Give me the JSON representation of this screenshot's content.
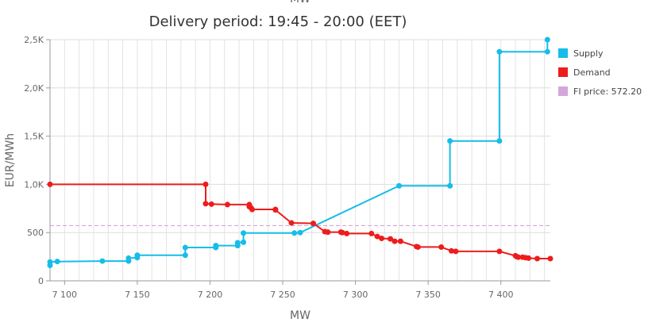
{
  "chart_data": {
    "type": "line",
    "title": "Delivery period: 19:45 - 20:00 (EET)",
    "top_label": "MW",
    "xlabel": "MW",
    "ylabel": "EUR/MWh",
    "xlim": [
      7090,
      7434
    ],
    "ylim": [
      0,
      2500
    ],
    "x_ticks": [
      {
        "value": 7100,
        "label": "7 100"
      },
      {
        "value": 7150,
        "label": "7 150"
      },
      {
        "value": 7200,
        "label": "7 200"
      },
      {
        "value": 7250,
        "label": "7 250"
      },
      {
        "value": 7300,
        "label": "7 300"
      },
      {
        "value": 7350,
        "label": "7 350"
      },
      {
        "value": 7400,
        "label": "7 400"
      }
    ],
    "y_ticks": [
      {
        "value": 0,
        "label": "0"
      },
      {
        "value": 500,
        "label": "500"
      },
      {
        "value": 1000,
        "label": "1,0K"
      },
      {
        "value": 1500,
        "label": "1,5K"
      },
      {
        "value": 2000,
        "label": "2,0K"
      },
      {
        "value": 2500,
        "label": "2,5K"
      }
    ],
    "grid": true,
    "legend_position": "right",
    "series": [
      {
        "name": "Supply",
        "color": "#16bde8",
        "points": [
          [
            7090,
            160
          ],
          [
            7090,
            195
          ],
          [
            7095,
            200
          ],
          [
            7126,
            205
          ],
          [
            7144,
            205
          ],
          [
            7144,
            235
          ],
          [
            7150,
            240
          ],
          [
            7150,
            265
          ],
          [
            7183,
            265
          ],
          [
            7183,
            345
          ],
          [
            7204,
            345
          ],
          [
            7204,
            365
          ],
          [
            7219,
            365
          ],
          [
            7219,
            395
          ],
          [
            7223,
            400
          ],
          [
            7223,
            495
          ],
          [
            7258,
            495
          ],
          [
            7262,
            500
          ],
          [
            7330,
            985
          ],
          [
            7365,
            985
          ],
          [
            7365,
            1450
          ],
          [
            7399,
            1450
          ],
          [
            7399,
            2375
          ],
          [
            7432,
            2375
          ],
          [
            7432,
            2500
          ]
        ]
      },
      {
        "name": "Demand",
        "color": "#ee1c1c",
        "points": [
          [
            7090,
            1000
          ],
          [
            7197,
            1000
          ],
          [
            7197,
            800
          ],
          [
            7201,
            795
          ],
          [
            7212,
            790
          ],
          [
            7227,
            790
          ],
          [
            7227,
            770
          ],
          [
            7228,
            760
          ],
          [
            7229,
            740
          ],
          [
            7245,
            740
          ],
          [
            7245,
            735
          ],
          [
            7256,
            600
          ],
          [
            7271,
            595
          ],
          [
            7279,
            510
          ],
          [
            7281,
            505
          ],
          [
            7290,
            505
          ],
          [
            7291,
            500
          ],
          [
            7294,
            490
          ],
          [
            7311,
            490
          ],
          [
            7315,
            460
          ],
          [
            7318,
            440
          ],
          [
            7324,
            435
          ],
          [
            7327,
            410
          ],
          [
            7331,
            410
          ],
          [
            7342,
            355
          ],
          [
            7343,
            350
          ],
          [
            7359,
            350
          ],
          [
            7366,
            310
          ],
          [
            7369,
            305
          ],
          [
            7399,
            305
          ],
          [
            7410,
            260
          ],
          [
            7411,
            250
          ],
          [
            7412,
            245
          ],
          [
            7415,
            245
          ],
          [
            7417,
            240
          ],
          [
            7419,
            235
          ],
          [
            7425,
            230
          ],
          [
            7434,
            230
          ]
        ]
      }
    ],
    "reference_line": {
      "name": "FI price: 572.20",
      "value": 572.2,
      "color": "#d3a8d8"
    }
  }
}
